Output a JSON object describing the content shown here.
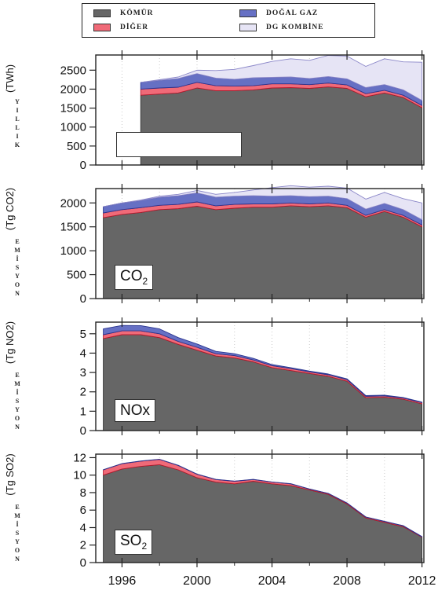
{
  "legend": [
    {
      "label": "KÖMÜR",
      "color": "#666666"
    },
    {
      "label": "DOĞAL GAZ",
      "color": "#6670c4"
    },
    {
      "label": "DİĞER",
      "color": "#f06a78"
    },
    {
      "label": "DG KOMBİNE",
      "color": "#e6e4f5"
    }
  ],
  "chart_data": [
    {
      "type": "area",
      "y_unit": "(TWh)",
      "y_side": "YILLIK",
      "x": [
        1997,
        1998,
        1999,
        2000,
        2001,
        2002,
        2003,
        2004,
        2005,
        2006,
        2007,
        2008,
        2009,
        2010,
        2011,
        2012
      ],
      "series": [
        {
          "name": "KÖMÜR",
          "values": [
            1840,
            1870,
            1900,
            2030,
            1960,
            1960,
            1980,
            2030,
            2040,
            2020,
            2060,
            2020,
            1800,
            1900,
            1780,
            1510
          ]
        },
        {
          "name": "DİĞER",
          "values": [
            160,
            160,
            150,
            150,
            130,
            120,
            110,
            110,
            100,
            100,
            100,
            90,
            80,
            70,
            60,
            60
          ]
        },
        {
          "name": "DOĞAL GAZ",
          "values": [
            180,
            200,
            230,
            230,
            200,
            180,
            210,
            170,
            180,
            160,
            170,
            160,
            160,
            150,
            140,
            130
          ]
        },
        {
          "name": "DG KOMBİNE",
          "values": [
            0,
            20,
            40,
            90,
            200,
            260,
            320,
            420,
            480,
            480,
            560,
            600,
            560,
            680,
            740,
            1010
          ]
        }
      ],
      "ylim": [
        0,
        2900
      ],
      "yticks": [
        0,
        500,
        1000,
        1500,
        2000,
        2500
      ]
    },
    {
      "type": "area",
      "y_unit": "(Tg CO2)",
      "y_side": "EMİSYON",
      "label": "CO2",
      "x": [
        1995,
        1996,
        1997,
        1998,
        1999,
        2000,
        2001,
        2002,
        2003,
        2004,
        2005,
        2006,
        2007,
        2008,
        2009,
        2010,
        2011,
        2012
      ],
      "series": [
        {
          "name": "KÖMÜR",
          "values": [
            1690,
            1760,
            1800,
            1860,
            1880,
            1930,
            1860,
            1890,
            1910,
            1910,
            1940,
            1920,
            1940,
            1900,
            1700,
            1820,
            1700,
            1500
          ]
        },
        {
          "name": "DİĞER",
          "values": [
            100,
            100,
            100,
            90,
            90,
            90,
            80,
            80,
            70,
            70,
            60,
            60,
            60,
            50,
            40,
            40,
            40,
            40
          ]
        },
        {
          "name": "DOĞAL GAZ",
          "values": [
            130,
            140,
            150,
            170,
            180,
            190,
            180,
            170,
            170,
            160,
            150,
            150,
            140,
            140,
            130,
            130,
            120,
            110
          ]
        },
        {
          "name": "DG KOMBİNE",
          "values": [
            0,
            0,
            10,
            20,
            30,
            50,
            60,
            80,
            120,
            180,
            210,
            200,
            210,
            220,
            210,
            230,
            230,
            350
          ]
        }
      ],
      "ylim": [
        0,
        2300
      ],
      "yticks": [
        0,
        500,
        1000,
        1500,
        2000
      ]
    },
    {
      "type": "area",
      "y_unit": "(Tg NO2)",
      "y_side": "EMİSYON",
      "label": "NOx",
      "x": [
        1995,
        1996,
        1997,
        1998,
        1999,
        2000,
        2001,
        2002,
        2003,
        2004,
        2005,
        2006,
        2007,
        2008,
        2009,
        2010,
        2011,
        2012
      ],
      "series": [
        {
          "name": "KÖMÜR",
          "values": [
            4.75,
            4.95,
            4.95,
            4.8,
            4.45,
            4.15,
            3.85,
            3.75,
            3.55,
            3.25,
            3.1,
            2.95,
            2.8,
            2.55,
            1.7,
            1.72,
            1.62,
            1.38
          ]
        },
        {
          "name": "DİĞER",
          "values": [
            0.2,
            0.2,
            0.2,
            0.2,
            0.15,
            0.15,
            0.12,
            0.12,
            0.1,
            0.1,
            0.1,
            0.08,
            0.08,
            0.08,
            0.07,
            0.07,
            0.06,
            0.06
          ]
        },
        {
          "name": "DOĞAL GAZ",
          "values": [
            0.3,
            0.28,
            0.27,
            0.25,
            0.2,
            0.17,
            0.12,
            0.1,
            0.08,
            0.06,
            0.05,
            0.04,
            0.04,
            0.04,
            0.04,
            0.04,
            0.03,
            0.03
          ]
        },
        {
          "name": "DG KOMBİNE",
          "values": [
            0,
            0,
            0,
            0,
            0,
            0,
            0,
            0,
            0,
            0,
            0,
            0,
            0,
            0,
            0,
            0,
            0,
            0
          ]
        }
      ],
      "ylim": [
        0,
        5.6
      ],
      "yticks": [
        0,
        1,
        2,
        3,
        4,
        5
      ]
    },
    {
      "type": "area",
      "y_unit": "(Tg SO2)",
      "y_side": "EMİSYON",
      "label": "SO2",
      "x": [
        1995,
        1996,
        1997,
        1998,
        1999,
        2000,
        2001,
        2002,
        2003,
        2004,
        2005,
        2006,
        2007,
        2008,
        2009,
        2010,
        2011,
        2012
      ],
      "series": [
        {
          "name": "KÖMÜR",
          "values": [
            10.0,
            10.7,
            11.0,
            11.2,
            10.6,
            9.7,
            9.2,
            9.0,
            9.3,
            9.0,
            8.8,
            8.3,
            7.8,
            6.7,
            5.1,
            4.6,
            4.1,
            2.9
          ]
        },
        {
          "name": "DİĞER",
          "values": [
            0.6,
            0.6,
            0.6,
            0.6,
            0.5,
            0.4,
            0.3,
            0.3,
            0.2,
            0.2,
            0.2,
            0.1,
            0.1,
            0.1,
            0.1,
            0.1,
            0.1,
            0.05
          ]
        },
        {
          "name": "DOĞAL GAZ",
          "values": [
            0.02,
            0.02,
            0.02,
            0.02,
            0.02,
            0.02,
            0.02,
            0.02,
            0.02,
            0.02,
            0.02,
            0.02,
            0.02,
            0.02,
            0.02,
            0.02,
            0.02,
            0.02
          ]
        },
        {
          "name": "DG KOMBİNE",
          "values": [
            0,
            0,
            0,
            0,
            0,
            0,
            0,
            0,
            0,
            0,
            0,
            0,
            0,
            0,
            0,
            0,
            0,
            0
          ]
        }
      ],
      "ylim": [
        0,
        12.4
      ],
      "yticks": [
        0,
        2,
        4,
        6,
        8,
        10,
        12
      ]
    }
  ],
  "x_axis": {
    "xlim": [
      1994.6,
      2012.1
    ],
    "ticks": [
      1996,
      2000,
      2004,
      2008,
      2012
    ]
  }
}
